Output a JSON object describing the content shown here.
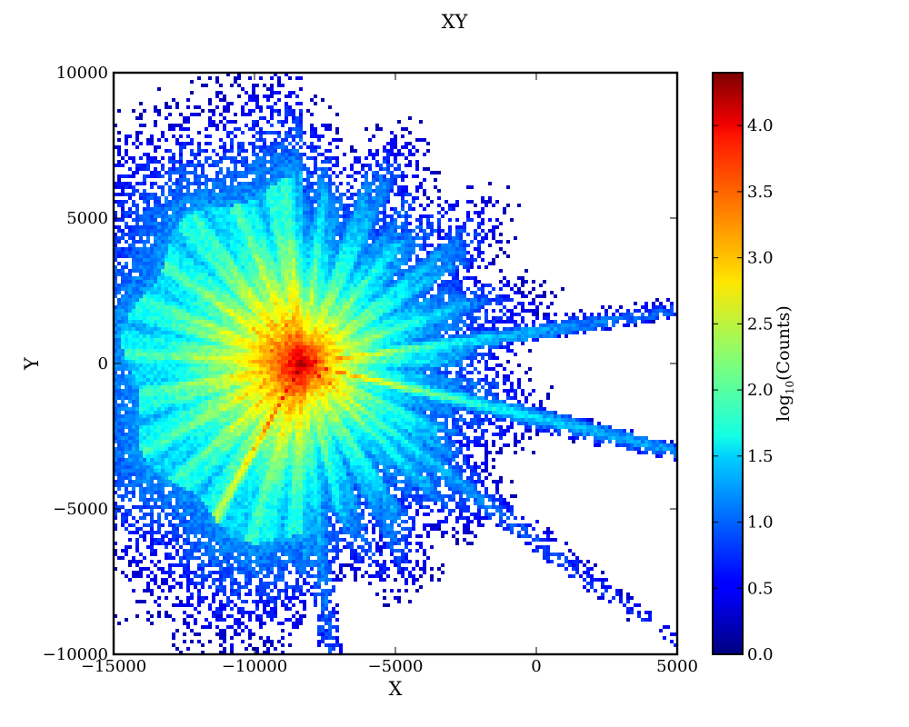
{
  "chart_data": {
    "type": "heatmap",
    "title": "XY",
    "xlabel": "X",
    "ylabel": "Y",
    "xlim": [
      -15000,
      5000
    ],
    "ylim": [
      -10000,
      10000
    ],
    "xticks": [
      -15000,
      -10000,
      -5000,
      0,
      5000
    ],
    "xtick_labels": [
      "−15000",
      "−10000",
      "−5000",
      "0",
      "5000"
    ],
    "yticks": [
      -10000,
      -5000,
      0,
      5000,
      10000
    ],
    "ytick_labels": [
      "−10000",
      "−5000",
      "0",
      "5000",
      "10000"
    ],
    "colorbar": {
      "label_base": "log",
      "label_sub": "10",
      "label_rest": "(Counts)",
      "range": [
        0.0,
        4.4
      ],
      "ticks": [
        0.0,
        0.5,
        1.0,
        1.5,
        2.0,
        2.5,
        3.0,
        3.5,
        4.0
      ],
      "tick_labels": [
        "0.0",
        "0.5",
        "1.0",
        "1.5",
        "2.0",
        "2.5",
        "3.0",
        "3.5",
        "4.0"
      ],
      "colormap": "jet"
    },
    "grid": false,
    "density_center": [
      -8300,
      0
    ],
    "peak_value": 4.4,
    "streaks_toward": [
      [
        3000,
        -2600
      ],
      [
        2700,
        -8000
      ],
      [
        4800,
        -9300
      ],
      [
        1500,
        1400
      ],
      [
        -11500,
        -5500
      ],
      [
        -7300,
        -10000
      ]
    ]
  }
}
